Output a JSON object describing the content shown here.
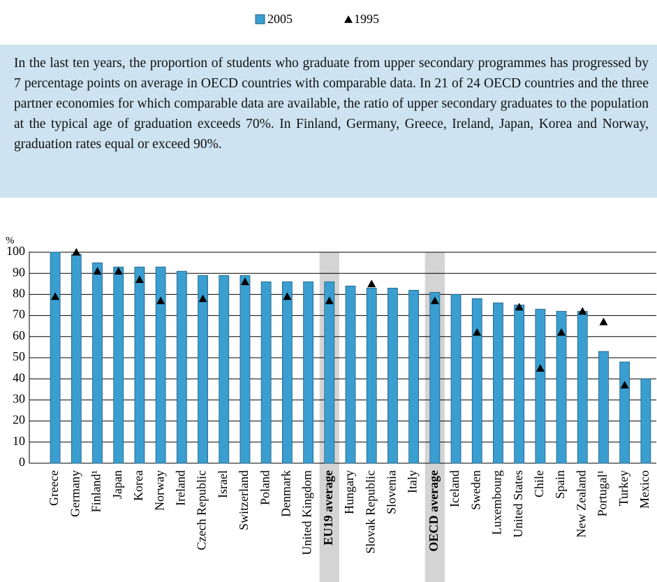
{
  "chart_data": {
    "type": "bar",
    "text": "In the last ten years, the proportion of students who graduate from upper secondary programmes has progressed by 7 percentage points on average in OECD countries with comparable data. In 21 of 24 OECD countries and the three partner economies for which comparable data are available, the ratio of upper secondary graduates to the population at the typical age of graduation exceeds 70%. In Finland, Germany, Greece, Ireland, Japan, Korea and Norway, graduation rates equal or exceed 90%.",
    "y_label": "%",
    "categories": [
      "Greece",
      "Germany",
      "Finland¹",
      "Japan",
      "Korea",
      "Norway",
      "Ireland",
      "Czech Republic",
      "Israel",
      "Switzerland",
      "Poland",
      "Denmark",
      "United Kingdom",
      "EU19 average",
      "Hungary",
      "Slovak Republic",
      "Slovenia",
      "Italy",
      "OECD average",
      "Iceland",
      "Sweden",
      "Luxembourg",
      "United States",
      "Chile",
      "Spain",
      "New Zealand",
      "Portugal¹",
      "Turkey",
      "Mexico"
    ],
    "highlight": [
      13,
      18
    ],
    "series": [
      {
        "name": "2005",
        "color": "#3a9ed0",
        "values": [
          100,
          99,
          95,
          93,
          93,
          93,
          91,
          89,
          89,
          89,
          86,
          86,
          86,
          86,
          84,
          83,
          83,
          82,
          81,
          80,
          78,
          76,
          75,
          73,
          72,
          72,
          53,
          48,
          40
        ]
      },
      {
        "name": "1995",
        "color": "#000000",
        "values": [
          79,
          100,
          91,
          91,
          87,
          77,
          null,
          78,
          null,
          86,
          null,
          79,
          null,
          77,
          null,
          85,
          null,
          null,
          77,
          null,
          62,
          null,
          74,
          45,
          62,
          72,
          67,
          37,
          null
        ]
      }
    ],
    "ylim": [
      0,
      100
    ],
    "yticks": [
      0,
      10,
      20,
      30,
      40,
      50,
      60,
      70,
      80,
      90,
      100
    ],
    "grid": true
  }
}
